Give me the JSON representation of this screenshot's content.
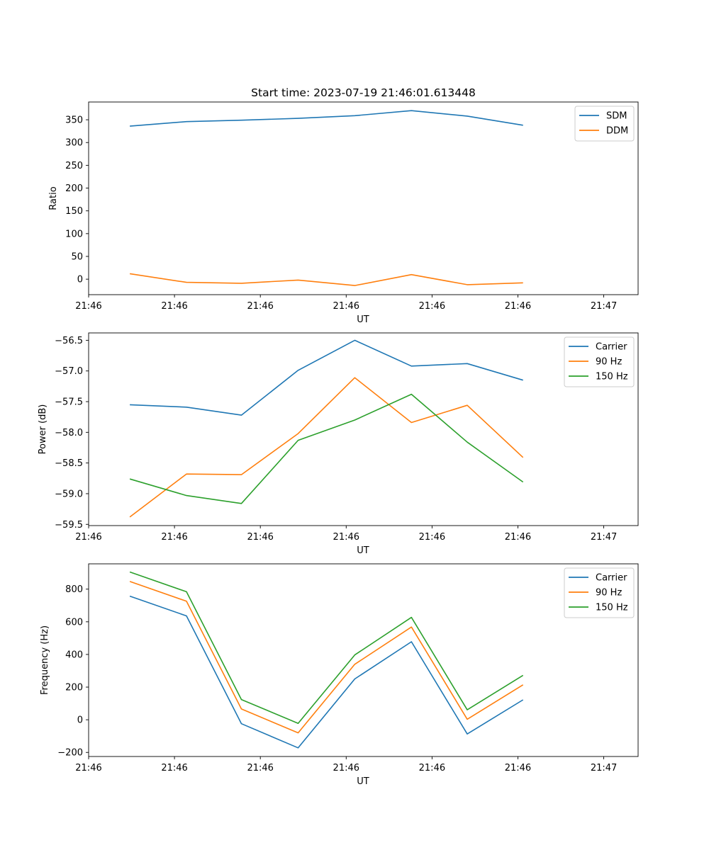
{
  "figure": {
    "title": "Start time: 2023-07-19 21:46:01.613448"
  },
  "chart_data": [
    {
      "type": "line",
      "title": "Start time: 2023-07-19 21:46:01.613448",
      "xlabel": "UT",
      "ylabel": "Ratio",
      "xlim": [
        0,
        6.4
      ],
      "xticks": [
        0,
        1,
        2,
        3,
        4,
        5,
        6
      ],
      "xtick_labels": [
        "21:46",
        "21:46",
        "21:46",
        "21:46",
        "21:46",
        "21:46",
        "21:47"
      ],
      "ylim": [
        -34,
        389
      ],
      "yticks": [
        0,
        50,
        100,
        150,
        200,
        250,
        300,
        350
      ],
      "ytick_labels": [
        "0",
        "50",
        "100",
        "150",
        "200",
        "250",
        "300",
        "350"
      ],
      "x": [
        0.48,
        1.14,
        1.78,
        2.44,
        3.1,
        3.76,
        4.41,
        5.06
      ],
      "legend": "top-right",
      "series": [
        {
          "name": "SDM",
          "color": "#1f77b4",
          "values": [
            336,
            346,
            349,
            353,
            359,
            370,
            358,
            338
          ]
        },
        {
          "name": "DDM",
          "color": "#ff7f0e",
          "values": [
            12,
            -7,
            -9,
            -2,
            -14,
            10,
            -12,
            -8
          ]
        }
      ]
    },
    {
      "type": "line",
      "xlabel": "UT",
      "ylabel": "Power (dB)",
      "xlim": [
        0,
        6.4
      ],
      "xticks": [
        0,
        1,
        2,
        3,
        4,
        5,
        6
      ],
      "xtick_labels": [
        "21:46",
        "21:46",
        "21:46",
        "21:46",
        "21:46",
        "21:46",
        "21:47"
      ],
      "ylim": [
        -59.52,
        -56.38
      ],
      "yticks": [
        -59.5,
        -59.0,
        -58.5,
        -58.0,
        -57.5,
        -57.0,
        -56.5
      ],
      "ytick_labels": [
        "−59.5",
        "−59.0",
        "−58.5",
        "−58.0",
        "−57.5",
        "−57.0",
        "−56.5"
      ],
      "x": [
        0.48,
        1.14,
        1.78,
        2.44,
        3.1,
        3.76,
        4.41,
        5.06
      ],
      "legend": "top-right",
      "series": [
        {
          "name": "Carrier",
          "color": "#1f77b4",
          "values": [
            -57.55,
            -57.59,
            -57.72,
            -56.99,
            -56.5,
            -56.92,
            -56.88,
            -57.15
          ]
        },
        {
          "name": "90 Hz",
          "color": "#ff7f0e",
          "values": [
            -59.38,
            -58.68,
            -58.69,
            -58.02,
            -57.11,
            -57.84,
            -57.56,
            -58.41
          ]
        },
        {
          "name": "150 Hz",
          "color": "#2ca02c",
          "values": [
            -58.76,
            -59.03,
            -59.16,
            -58.13,
            -57.8,
            -57.38,
            -58.16,
            -58.81
          ]
        }
      ]
    },
    {
      "type": "line",
      "xlabel": "UT",
      "ylabel": "Frequency (Hz)",
      "xlim": [
        0,
        6.4
      ],
      "xticks": [
        0,
        1,
        2,
        3,
        4,
        5,
        6
      ],
      "xtick_labels": [
        "21:46",
        "21:46",
        "21:46",
        "21:46",
        "21:46",
        "21:46",
        "21:47"
      ],
      "ylim": [
        -225,
        955
      ],
      "yticks": [
        -200,
        0,
        200,
        400,
        600,
        800
      ],
      "ytick_labels": [
        "−200",
        "0",
        "200",
        "400",
        "600",
        "800"
      ],
      "x": [
        0.48,
        1.14,
        1.78,
        2.44,
        3.1,
        3.76,
        4.41,
        5.06
      ],
      "legend": "top-right",
      "series": [
        {
          "name": "Carrier",
          "color": "#1f77b4",
          "values": [
            757,
            636,
            -24,
            -172,
            250,
            478,
            -87,
            122
          ]
        },
        {
          "name": "90 Hz",
          "color": "#ff7f0e",
          "values": [
            847,
            726,
            66,
            -80,
            340,
            568,
            3,
            214
          ]
        },
        {
          "name": "150 Hz",
          "color": "#2ca02c",
          "values": [
            905,
            784,
            124,
            -22,
            397,
            627,
            61,
            272
          ]
        }
      ]
    }
  ]
}
